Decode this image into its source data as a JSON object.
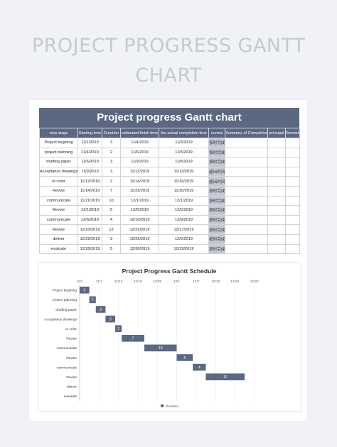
{
  "poster": {
    "title_line1": "PROJECT PROGRESS GANTT",
    "title_line2": "CHART"
  },
  "table": {
    "title": "Project progress Gantt chart",
    "headers": [
      "step stage",
      "Starting time",
      "Duration",
      "estimated finish time",
      "the actual completion time",
      "review",
      "Summary of Completion",
      "principal",
      "Remark"
    ],
    "rows": [
      [
        "Project begining",
        "11/1/2019",
        "3",
        "11/4/2019",
        "11/3/2019",
        "按时完成",
        "",
        "",
        ""
      ],
      [
        "project planning",
        "11/4/2019",
        "2",
        "11/6/2019",
        "11/5/2019",
        "按时完成",
        "",
        "",
        ""
      ],
      [
        "drafting paper",
        "11/6/2019",
        "3",
        "11/9/2019",
        "11/8/2019",
        "按时完成",
        "",
        "",
        ""
      ],
      [
        "Acceptance drawings",
        "11/9/2019",
        "3",
        "11/12/2019",
        "11/13/2019",
        "超出时间",
        "",
        "",
        ""
      ],
      [
        "to color",
        "11/12/2019",
        "2",
        "11/14/2019",
        "11/16/2019",
        "超出时间",
        "",
        "",
        ""
      ],
      [
        "Revise",
        "11/14/2019",
        "7",
        "11/21/2019",
        "11/20/2019",
        "按时完成",
        "",
        "",
        ""
      ],
      [
        "communicate",
        "11/21/2019",
        "10",
        "12/1/2019",
        "12/1/2019",
        "按时完成",
        "",
        "",
        ""
      ],
      [
        "Revise",
        "12/1/2019",
        "5",
        "12/6/2019",
        "12/5/2019",
        "按时完成",
        "",
        "",
        ""
      ],
      [
        "communicate",
        "12/6/2019",
        "4",
        "12/10/2019",
        "12/9/2019",
        "按时完成",
        "",
        "",
        ""
      ],
      [
        "Revise",
        "12/10/2019",
        "12",
        "12/22/2019",
        "12/17/2019",
        "按时完成",
        "",
        "",
        ""
      ],
      [
        "deliver",
        "12/22/2019",
        "3",
        "12/25/2019",
        "12/5/2019",
        "按时完成",
        "",
        "",
        ""
      ],
      [
        "evaluate",
        "12/25/2019",
        "5",
        "12/30/2019",
        "12/29/2019",
        "按时完成",
        "",
        "",
        ""
      ]
    ]
  },
  "chart_data": {
    "type": "bar",
    "orientation": "horizontal-gantt",
    "title": "Project Progress Gantt Schedule",
    "x_ticks": [
      "11/1",
      "11/7",
      "11/13",
      "11/19",
      "11/25",
      "12/1",
      "12/7",
      "12/13",
      "12/19",
      "12/25"
    ],
    "categories": [
      "Project begining",
      "project planning",
      "drafting paper",
      "Acceptance drawings",
      "to color",
      "Revise",
      "communicate",
      "Revise",
      "communicate",
      "Revise",
      "deliver",
      "evaluate"
    ],
    "start": [
      "2019-11-01",
      "2019-11-04",
      "2019-11-06",
      "2019-11-09",
      "2019-11-12",
      "2019-11-14",
      "2019-11-21",
      "2019-12-01",
      "2019-12-06",
      "2019-12-10",
      null,
      null
    ],
    "series": [
      {
        "name": "Duration",
        "values": [
          3,
          2,
          3,
          3,
          2,
          7,
          10,
          5,
          4,
          12,
          null,
          null
        ]
      }
    ],
    "bar_color": "#5b6882",
    "legend_position": "bottom",
    "grid": true
  }
}
